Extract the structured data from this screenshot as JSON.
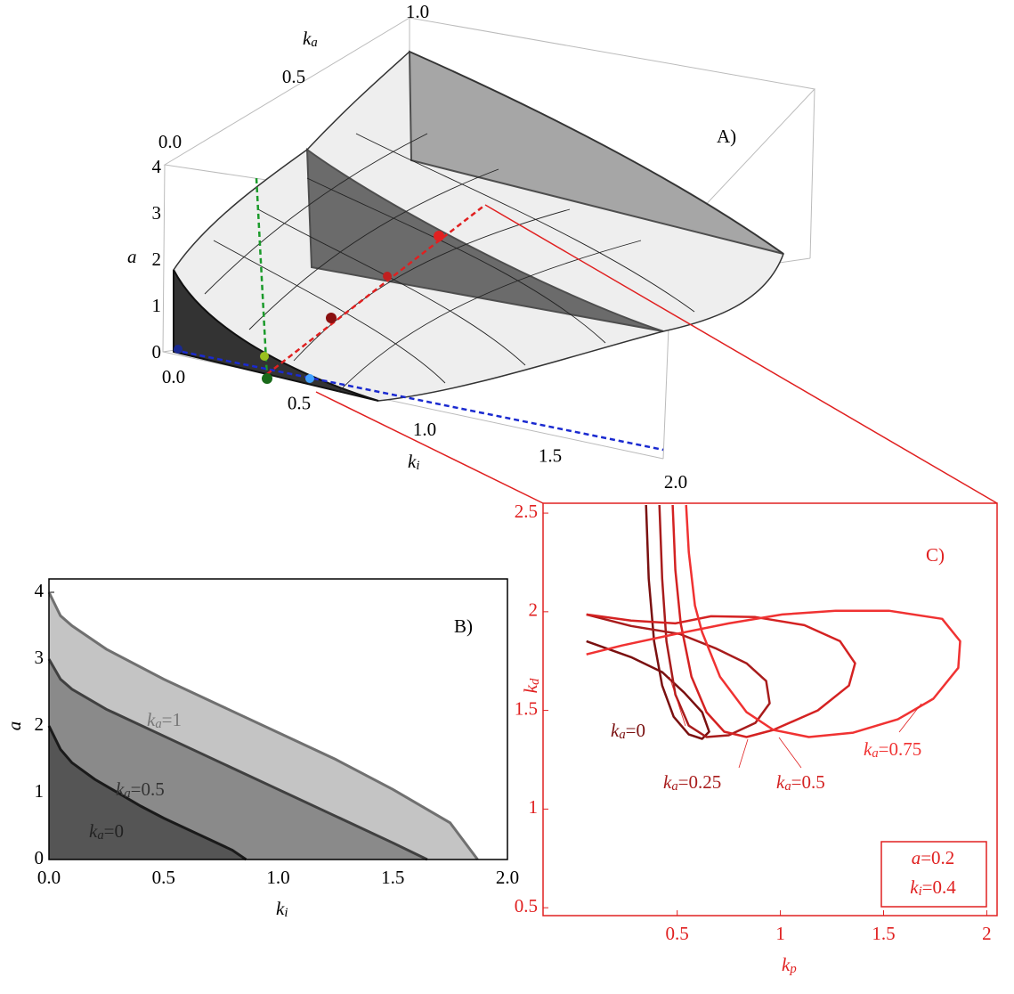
{
  "chart_data": [
    {
      "type": "surface3d",
      "title": "A)",
      "xlabel": "ki",
      "ylabel": "ka",
      "zlabel": "a",
      "xlim": [
        0,
        2
      ],
      "ylim": [
        0,
        1
      ],
      "zlim": [
        0,
        4
      ],
      "xticks": [
        {
          "value": 0,
          "label": "0.0"
        },
        {
          "value": 0.5,
          "label": "0.5"
        },
        {
          "value": 1,
          "label": "1.0"
        },
        {
          "value": 1.5,
          "label": "1.5"
        },
        {
          "value": 2,
          "label": "2.0"
        }
      ],
      "yticks": [
        {
          "value": 0,
          "label": "0.0"
        },
        {
          "value": 0.5,
          "label": "0.5"
        },
        {
          "value": 1,
          "label": "1.0"
        }
      ],
      "zticks": [
        0,
        1,
        2,
        3,
        4
      ]
    },
    {
      "type": "area",
      "title": "B)",
      "xlabel": "ki",
      "ylabel": "a",
      "xlim": [
        0,
        2
      ],
      "ylim": [
        0,
        4.2
      ],
      "xticks": [
        {
          "value": 0,
          "label": "0.0"
        },
        {
          "value": 0.5,
          "label": "0.5"
        },
        {
          "value": 1,
          "label": "1.0"
        },
        {
          "value": 1.5,
          "label": "1.5"
        },
        {
          "value": 2,
          "label": "2.0"
        }
      ],
      "yticks": [
        0,
        1,
        2,
        3,
        4
      ],
      "series": [
        {
          "name": "ka=0",
          "color": "#1a1a1a",
          "fill": "#555555",
          "x": [
            0,
            0.05,
            0.1,
            0.2,
            0.3,
            0.4,
            0.5,
            0.6,
            0.7,
            0.8,
            0.86
          ],
          "values": [
            2.0,
            1.65,
            1.45,
            1.2,
            1.0,
            0.8,
            0.62,
            0.46,
            0.3,
            0.14,
            0
          ]
        },
        {
          "name": "ka=0.5",
          "color": "#404040",
          "fill": "#8a8a8a",
          "x": [
            0,
            0.05,
            0.1,
            0.25,
            0.5,
            0.75,
            1.0,
            1.25,
            1.5,
            1.65
          ],
          "values": [
            3.0,
            2.7,
            2.55,
            2.25,
            1.85,
            1.45,
            1.05,
            0.65,
            0.25,
            0
          ]
        },
        {
          "name": "ka=1",
          "color": "#707070",
          "fill": "#c4c4c4",
          "x": [
            0,
            0.05,
            0.1,
            0.25,
            0.5,
            0.75,
            1.0,
            1.25,
            1.5,
            1.75,
            1.87
          ],
          "values": [
            4.0,
            3.65,
            3.5,
            3.15,
            2.7,
            2.3,
            1.9,
            1.5,
            1.05,
            0.55,
            0
          ]
        }
      ]
    },
    {
      "type": "line",
      "title": "C)",
      "xlabel": "kp",
      "ylabel": "kd",
      "xlim": [
        -0.15,
        2.05
      ],
      "ylim": [
        0.46,
        2.55
      ],
      "xticks": [
        0.5,
        1,
        1.5,
        2
      ],
      "yticks": [
        0.5,
        1,
        1.5,
        2,
        2.5
      ],
      "annotations": [
        "a=0.2",
        "ki=0.4"
      ],
      "series": [
        {
          "name": "ka=0",
          "color": "#7a1010",
          "x": [
            0.349,
            0.362,
            0.388,
            0.427,
            0.483,
            0.556,
            0.621,
            0.655,
            0.621,
            0.534,
            0.427,
            0.276,
            0.06
          ],
          "values": [
            2.541,
            2.167,
            1.851,
            1.626,
            1.468,
            1.378,
            1.356,
            1.392,
            1.491,
            1.59,
            1.694,
            1.77,
            1.851
          ]
        },
        {
          "name": "ka=0.25",
          "color": "#a81c1c",
          "x": [
            0.414,
            0.427,
            0.448,
            0.491,
            0.556,
            0.642,
            0.75,
            0.879,
            0.948,
            0.931,
            0.836,
            0.685,
            0.513,
            0.276,
            0.06
          ],
          "values": [
            2.541,
            2.167,
            1.851,
            1.581,
            1.423,
            1.365,
            1.374,
            1.437,
            1.536,
            1.649,
            1.739,
            1.815,
            1.887,
            1.928,
            1.986
          ]
        },
        {
          "name": "ka=0.5",
          "color": "#d42222",
          "x": [
            0.478,
            0.491,
            0.517,
            0.569,
            0.642,
            0.728,
            0.836,
            0.966,
            1.181,
            1.332,
            1.362,
            1.289,
            1.116,
            0.879,
            0.664,
            0.491,
            0.276,
            0.06
          ],
          "values": [
            2.541,
            2.212,
            1.941,
            1.671,
            1.491,
            1.392,
            1.365,
            1.401,
            1.5,
            1.626,
            1.739,
            1.851,
            1.932,
            1.973,
            1.977,
            1.941,
            1.955,
            1.986
          ]
        },
        {
          "name": "ka=0.75",
          "color": "#f03232",
          "x": [
            0.543,
            0.556,
            0.586,
            0.621,
            0.707,
            0.836,
            0.966,
            1.138,
            1.353,
            1.569,
            1.741,
            1.862,
            1.871,
            1.784,
            1.526,
            1.267,
            1.009,
            0.75,
            0.491,
            0.233,
            0.06
          ],
          "values": [
            2.541,
            2.302,
            2.032,
            1.896,
            1.671,
            1.491,
            1.401,
            1.365,
            1.387,
            1.455,
            1.559,
            1.716,
            1.851,
            1.964,
            2.005,
            2.005,
            1.986,
            1.941,
            1.887,
            1.829,
            1.784
          ]
        }
      ]
    }
  ]
}
